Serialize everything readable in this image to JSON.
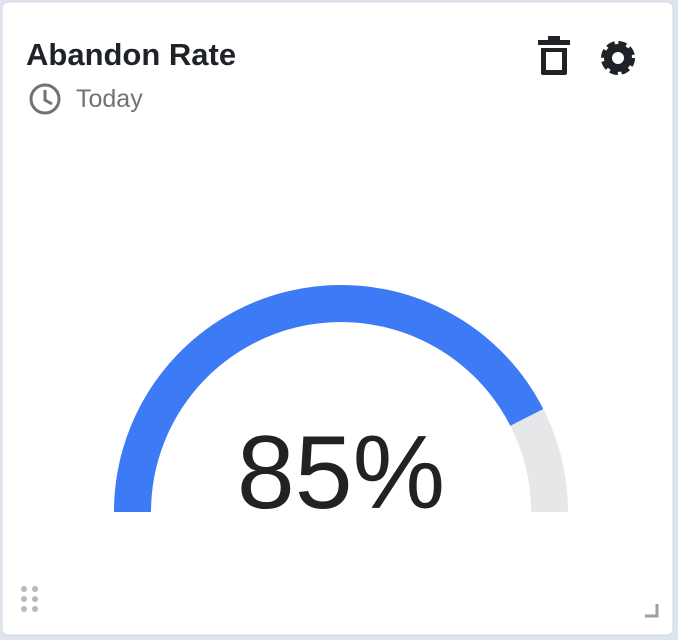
{
  "chart_data": {
    "type": "gauge",
    "title": "Abandon Rate",
    "subtitle": "Today",
    "values": [
      85
    ],
    "value_labels": [
      "85%"
    ],
    "ylim": [
      0,
      100
    ],
    "color": "#3d7af5",
    "track_color": "#e6e7e8"
  }
}
